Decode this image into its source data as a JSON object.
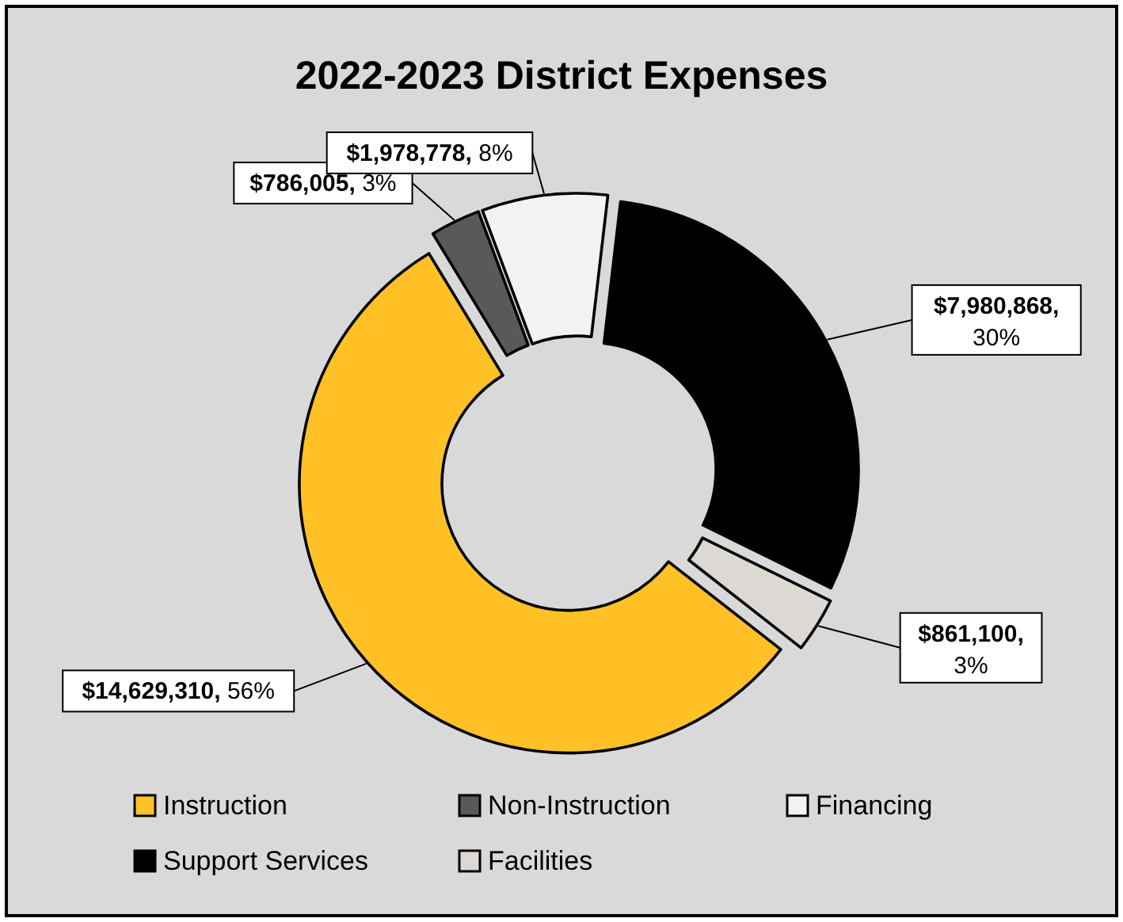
{
  "chart_data": {
    "type": "donut",
    "title": "2022-2023 District Expenses",
    "categories": [
      "Instruction",
      "Non-Instruction",
      "Financing",
      "Support Services",
      "Facilities"
    ],
    "values": [
      14629310,
      786005,
      1978778,
      7980868,
      861100
    ],
    "colors": [
      "#ffc125",
      "#595959",
      "#f2f2f2",
      "#000000",
      "#dcd8d3"
    ],
    "value_labels": [
      "$14,629,310, 56%",
      "$786,005, 3%",
      "$1,978,778, 8%",
      "$7,980,868, 30%",
      "$861,100, 3%"
    ],
    "legend": "bottom"
  }
}
